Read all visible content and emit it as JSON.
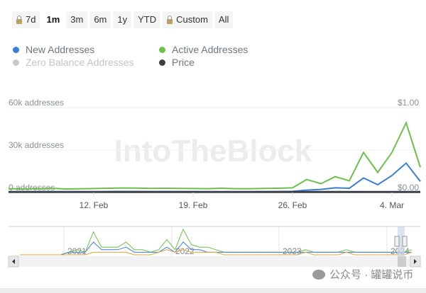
{
  "range_buttons": [
    {
      "label": "7d",
      "locked": true,
      "active": false
    },
    {
      "label": "1m",
      "locked": false,
      "active": true
    },
    {
      "label": "3m",
      "locked": false,
      "active": false
    },
    {
      "label": "6m",
      "locked": false,
      "active": false
    },
    {
      "label": "1y",
      "locked": false,
      "active": false
    },
    {
      "label": "YTD",
      "locked": false,
      "active": false
    },
    {
      "label": "Custom",
      "locked": true,
      "active": false
    },
    {
      "label": "All",
      "locked": false,
      "active": false
    }
  ],
  "legend": [
    {
      "label": "New Addresses",
      "color": "#3a7fd5",
      "enabled": true
    },
    {
      "label": "Active Addresses",
      "color": "#6cc04a",
      "enabled": true
    },
    {
      "label": "Zero Balance Addresses",
      "color": "#c8c8c8",
      "enabled": false
    },
    {
      "label": "Price",
      "color": "#3a3f47",
      "enabled": true
    }
  ],
  "watermark_logo": "IntoTheBlock",
  "footer_watermark": "公众号 · 罐罐说币",
  "chart_data": {
    "type": "line",
    "x": [
      "Feb 6",
      "Feb 7",
      "Feb 8",
      "Feb 9",
      "Feb 10",
      "Feb 11",
      "Feb 12",
      "Feb 13",
      "Feb 14",
      "Feb 15",
      "Feb 16",
      "Feb 17",
      "Feb 18",
      "Feb 19",
      "Feb 20",
      "Feb 21",
      "Feb 22",
      "Feb 23",
      "Feb 24",
      "Feb 25",
      "Feb 26",
      "Feb 27",
      "Feb 28",
      "Feb 29",
      "Mar 1",
      "Mar 2",
      "Mar 3",
      "Mar 4",
      "Mar 5",
      "Mar 6"
    ],
    "x_tick_labels": [
      "12. Feb",
      "19. Feb",
      "26. Feb",
      "4. Mar"
    ],
    "x_tick_dates": [
      "Feb 12",
      "Feb 19",
      "Feb 26",
      "Mar 4"
    ],
    "y_left": {
      "ticks": [
        "0 addresses",
        "30k addresses",
        "60k addresses"
      ],
      "range": [
        0,
        60000
      ]
    },
    "y_right": {
      "ticks": [
        "$0.00",
        "$1.00"
      ],
      "range": [
        0,
        1
      ]
    },
    "grid": true,
    "legend_position": "top-left",
    "series": [
      {
        "name": "Active Addresses",
        "color": "#6cc04a",
        "axis": "left",
        "values": [
          2600,
          2600,
          2700,
          3000,
          2500,
          2600,
          2800,
          3000,
          3200,
          3100,
          2900,
          3000,
          2900,
          2800,
          2700,
          3000,
          2700,
          2700,
          2900,
          3000,
          3300,
          9200,
          6200,
          11200,
          8300,
          28300,
          14200,
          28300,
          49200,
          17800
        ]
      },
      {
        "name": "New Addresses",
        "color": "#3a7fd5",
        "axis": "left",
        "values": [
          500,
          500,
          500,
          500,
          500,
          500,
          500,
          600,
          700,
          700,
          600,
          600,
          600,
          600,
          500,
          500,
          500,
          500,
          600,
          700,
          800,
          1700,
          2200,
          3300,
          3000,
          10300,
          5500,
          12000,
          20800,
          7800
        ]
      },
      {
        "name": "Price",
        "color": "#3a3f47",
        "axis": "right",
        "values": [
          0.01,
          0.01,
          0.01,
          0.01,
          0.01,
          0.01,
          0.01,
          0.01,
          0.01,
          0.01,
          0.01,
          0.01,
          0.01,
          0.01,
          0.01,
          0.01,
          0.01,
          0.01,
          0.01,
          0.01,
          0.01,
          0.01,
          0.01,
          0.01,
          0.01,
          0.01,
          0.01,
          0.01,
          0.01,
          0.01
        ]
      }
    ],
    "navigator": {
      "year_labels": [
        "2021",
        "2022",
        "2023",
        "2024"
      ],
      "series": [
        {
          "name": "Active Addresses",
          "color": "#6cc04a",
          "values": [
            0,
            0,
            0,
            0,
            0,
            0,
            1,
            2,
            1,
            9,
            3,
            3,
            3,
            5,
            2,
            2,
            1,
            2,
            6,
            2,
            10,
            4,
            3,
            3,
            2,
            1,
            1,
            1,
            1,
            1,
            1,
            1,
            1,
            1,
            1,
            2,
            1,
            1,
            1,
            1,
            2,
            1,
            1,
            1,
            1,
            1,
            1,
            1,
            2
          ]
        },
        {
          "name": "New Addresses",
          "color": "#3a7fd5",
          "values": [
            0,
            0,
            0,
            0,
            0,
            0,
            1,
            1,
            1,
            5,
            2,
            2,
            2,
            3,
            1,
            1,
            1,
            1,
            3,
            1,
            5,
            2,
            2,
            1,
            1,
            1,
            1,
            1,
            1,
            1,
            1,
            1,
            1,
            1,
            1,
            1,
            1,
            1,
            1,
            1,
            1,
            1,
            1,
            1,
            1,
            1,
            1,
            1,
            1
          ]
        },
        {
          "name": "Price",
          "color": "#e0a43a",
          "values": [
            0,
            0,
            0,
            0,
            0,
            0,
            0,
            0,
            0,
            1,
            1,
            1,
            1,
            1,
            0,
            0,
            0,
            1,
            2,
            1,
            2,
            1,
            1,
            1,
            1,
            0,
            0,
            0,
            0,
            0,
            0,
            0,
            0,
            0,
            0,
            1,
            0,
            0,
            0,
            0,
            1,
            0,
            0,
            0,
            0,
            0,
            0,
            0,
            1
          ]
        }
      ]
    }
  }
}
